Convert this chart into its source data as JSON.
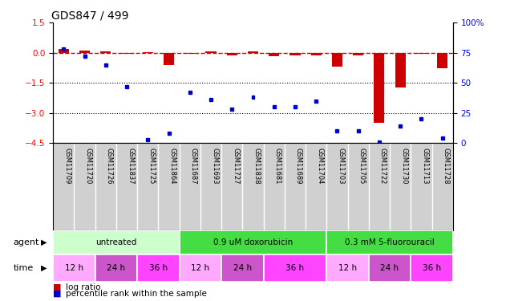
{
  "title": "GDS847 / 499",
  "samples": [
    "GSM11709",
    "GSM11720",
    "GSM11726",
    "GSM11837",
    "GSM11725",
    "GSM11864",
    "GSM11687",
    "GSM11693",
    "GSM11727",
    "GSM11838",
    "GSM11681",
    "GSM11689",
    "GSM11704",
    "GSM11703",
    "GSM11705",
    "GSM11722",
    "GSM11730",
    "GSM11713",
    "GSM11728"
  ],
  "log_ratio": [
    0.18,
    0.1,
    0.07,
    -0.04,
    0.01,
    -0.62,
    -0.04,
    0.07,
    -0.14,
    0.07,
    -0.16,
    -0.13,
    -0.13,
    -0.68,
    -0.12,
    -3.5,
    -1.75,
    -0.04,
    -0.78
  ],
  "pct_rank": [
    78,
    72,
    65,
    47,
    3,
    8,
    42,
    36,
    28,
    38,
    30,
    30,
    35,
    10,
    10,
    1,
    14,
    20,
    4
  ],
  "agents": [
    {
      "label": "untreated",
      "start": 0,
      "end": 6,
      "color": "#ccffcc"
    },
    {
      "label": "0.9 uM doxorubicin",
      "start": 6,
      "end": 13,
      "color": "#44dd44"
    },
    {
      "label": "0.3 mM 5-fluorouracil",
      "start": 13,
      "end": 19,
      "color": "#44dd44"
    }
  ],
  "times": [
    {
      "label": "12 h",
      "start": 0,
      "end": 2,
      "color": "#ffaaff"
    },
    {
      "label": "24 h",
      "start": 2,
      "end": 4,
      "color": "#dd66dd"
    },
    {
      "label": "36 h",
      "start": 4,
      "end": 6,
      "color": "#ee44ee"
    },
    {
      "label": "12 h",
      "start": 6,
      "end": 8,
      "color": "#ffaaff"
    },
    {
      "label": "24 h",
      "start": 8,
      "end": 10,
      "color": "#dd66dd"
    },
    {
      "label": "36 h",
      "start": 10,
      "end": 13,
      "color": "#ee44ee"
    },
    {
      "label": "12 h",
      "start": 13,
      "end": 15,
      "color": "#ffaaff"
    },
    {
      "label": "24 h",
      "start": 15,
      "end": 17,
      "color": "#dd66dd"
    },
    {
      "label": "36 h",
      "start": 17,
      "end": 19,
      "color": "#ee44ee"
    }
  ],
  "ylim_left": [
    -4.5,
    1.5
  ],
  "ylim_right": [
    0,
    100
  ],
  "yticks_left": [
    1.5,
    0,
    -1.5,
    -3.0,
    -4.5
  ],
  "yticks_right": [
    0,
    25,
    50,
    75,
    100
  ],
  "hlines": [
    -1.5,
    -3.0
  ],
  "bar_color": "#cc0000",
  "pct_color": "#0000cc",
  "zero_line_color": "#cc0000",
  "sample_bg": "#cccccc",
  "legend_bar_label": "log ratio",
  "legend_pct_label": "percentile rank within the sample"
}
